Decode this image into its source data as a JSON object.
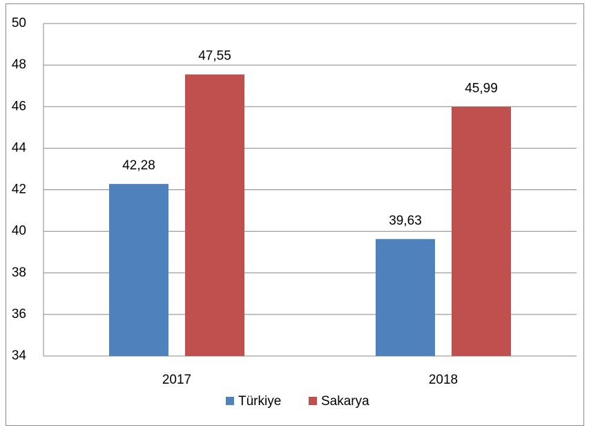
{
  "chart_data": {
    "type": "bar",
    "categories": [
      "2017",
      "2018"
    ],
    "series": [
      {
        "name": "Türkiye",
        "color": "#4f81bd",
        "values": [
          42.28,
          39.63
        ],
        "value_labels": [
          "42,28",
          "39,63"
        ]
      },
      {
        "name": "Sakarya",
        "color": "#c0504d",
        "values": [
          47.55,
          45.99
        ],
        "value_labels": [
          "47,55",
          "45,99"
        ]
      }
    ],
    "ylim": [
      34,
      50
    ],
    "yticks": [
      34,
      36,
      38,
      40,
      42,
      44,
      46,
      48,
      50
    ],
    "grid": true,
    "legend": "bottom"
  }
}
